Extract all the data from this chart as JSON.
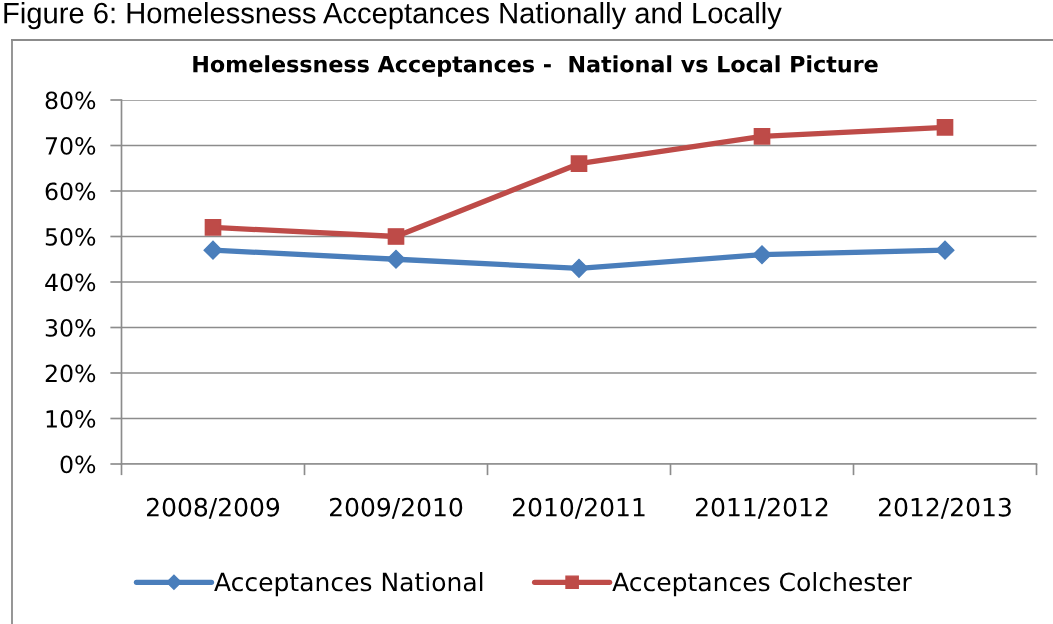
{
  "chart_data": {
    "type": "line",
    "title": "Homelessness Acceptances -  National vs Local Picture",
    "annotations": [
      "Figure 6: Homelessness Acceptances Nationally and Locally"
    ],
    "categories": [
      "2008/2009",
      "2009/2010",
      "2010/2011",
      "2011/2012",
      "2012/2013"
    ],
    "series": [
      {
        "name": "Acceptances National",
        "color": "#4a7ebb",
        "marker": "diamond",
        "values": [
          47,
          45,
          43,
          46,
          47
        ]
      },
      {
        "name": "Acceptances Colchester",
        "color": "#be4b48",
        "marker": "square",
        "values": [
          52,
          50,
          66,
          72,
          74
        ]
      }
    ],
    "ylim": [
      0,
      80
    ],
    "yticks": [
      {
        "value": 0,
        "label": "0%"
      },
      {
        "value": 10,
        "label": "10%"
      },
      {
        "value": 20,
        "label": "20%"
      },
      {
        "value": 30,
        "label": "30%"
      },
      {
        "value": 40,
        "label": "40%"
      },
      {
        "value": 50,
        "label": "50%"
      },
      {
        "value": 60,
        "label": "60%"
      },
      {
        "value": 70,
        "label": "70%"
      },
      {
        "value": 80,
        "label": "80%"
      }
    ],
    "grid": "y",
    "legend": "bottom",
    "line_style": "solid"
  }
}
